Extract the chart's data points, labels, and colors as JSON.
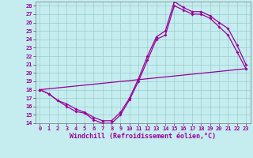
{
  "xlabel": "Windchill (Refroidissement éolien,°C)",
  "xlim": [
    -0.5,
    23.5
  ],
  "ylim": [
    14,
    28.5
  ],
  "xticks": [
    0,
    1,
    2,
    3,
    4,
    5,
    6,
    7,
    8,
    9,
    10,
    11,
    12,
    13,
    14,
    15,
    16,
    17,
    18,
    19,
    20,
    21,
    22,
    23
  ],
  "yticks": [
    14,
    15,
    16,
    17,
    18,
    19,
    20,
    21,
    22,
    23,
    24,
    25,
    26,
    27,
    28
  ],
  "bg_color": "#c5edf0",
  "line_color": "#990099",
  "grid_color": "#99cccc",
  "line1_y": [
    18.0,
    17.5,
    16.7,
    16.0,
    15.4,
    15.2,
    14.4,
    14.0,
    14.0,
    15.0,
    16.8,
    19.0,
    21.5,
    24.0,
    24.5,
    28.0,
    27.5,
    27.0,
    27.0,
    26.5,
    25.5,
    24.5,
    22.5,
    20.5
  ],
  "line2_y": [
    18.0,
    17.5,
    16.7,
    16.3,
    15.7,
    15.3,
    14.7,
    14.3,
    14.3,
    15.3,
    17.0,
    19.3,
    22.0,
    24.3,
    25.0,
    28.5,
    27.8,
    27.3,
    27.3,
    26.8,
    26.0,
    25.3,
    23.3,
    21.0
  ],
  "line_width": 0.9,
  "marker_size": 2.0,
  "tick_fontsize": 5.0,
  "xlabel_fontsize": 6.0
}
